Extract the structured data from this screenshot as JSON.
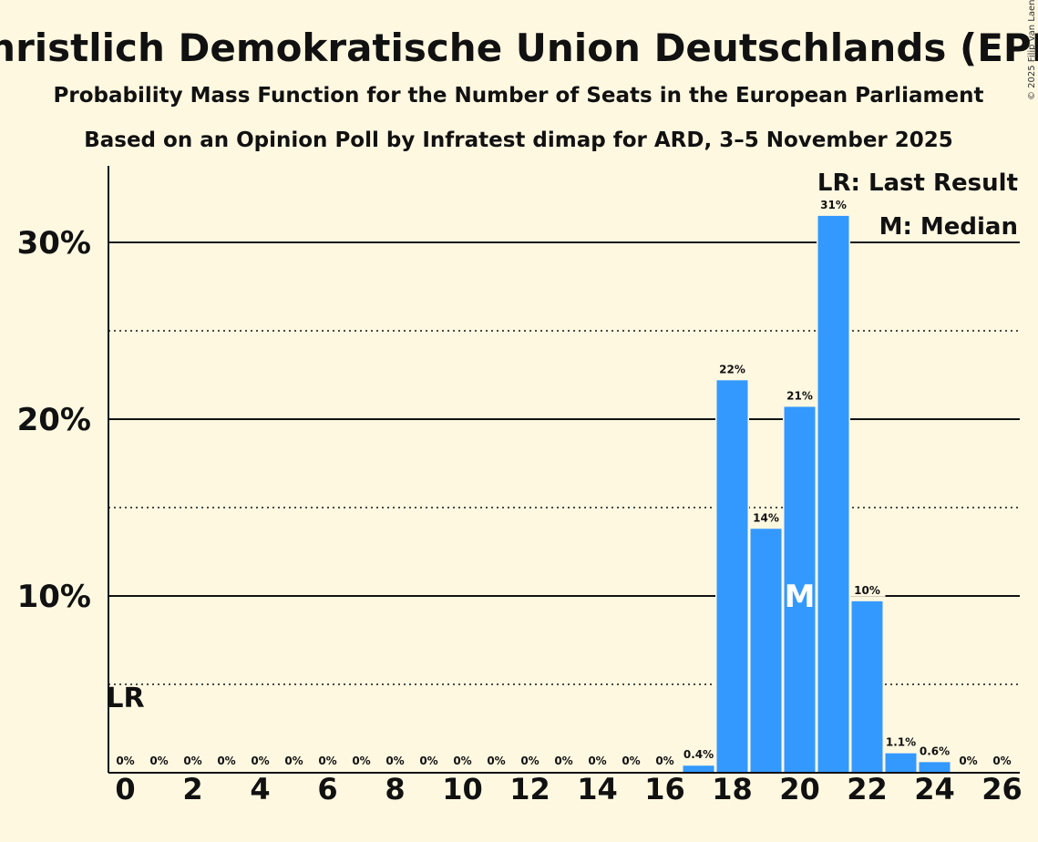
{
  "chart_data": {
    "type": "bar",
    "title": "Christlich Demokratische Union Deutschlands (EPP)",
    "subtitle": "Probability Mass Function for the Number of Seats in the European Parliament",
    "subtitle2": "Based on an Opinion Poll by Infratest dimap for ARD, 3–5 November 2025",
    "copyright": "© 2025 Filip van Laenen",
    "x": [
      0,
      1,
      2,
      3,
      4,
      5,
      6,
      7,
      8,
      9,
      10,
      11,
      12,
      13,
      14,
      15,
      16,
      17,
      18,
      19,
      20,
      21,
      22,
      23,
      24,
      25,
      26
    ],
    "values": [
      0,
      0,
      0,
      0,
      0,
      0,
      0,
      0,
      0,
      0,
      0,
      0,
      0,
      0,
      0,
      0,
      0,
      0.4,
      22.2,
      13.8,
      20.7,
      31.5,
      9.7,
      1.1,
      0.6,
      0,
      0
    ],
    "labels": [
      "0%",
      "0%",
      "0%",
      "0%",
      "0%",
      "0%",
      "0%",
      "0%",
      "0%",
      "0%",
      "0%",
      "0%",
      "0%",
      "0%",
      "0%",
      "0%",
      "0%",
      "0.4%",
      "22%",
      "14%",
      "21%",
      "31%",
      "10%",
      "1.1%",
      "0.6%",
      "0%",
      "0%"
    ],
    "x_ticks": [
      "0",
      "2",
      "4",
      "6",
      "8",
      "10",
      "12",
      "14",
      "16",
      "18",
      "20",
      "22",
      "24",
      "26"
    ],
    "y_ticks": [
      "10%",
      "20%",
      "30%"
    ],
    "ylim": [
      0,
      34
    ],
    "last_result_seat": 0,
    "last_result_label": "LR",
    "median_seat": 20,
    "median_label": "M",
    "legend": [
      "LR: Last Result",
      "M: Median"
    ],
    "bar_color": "#3399ff",
    "background": "#fff8e1"
  }
}
